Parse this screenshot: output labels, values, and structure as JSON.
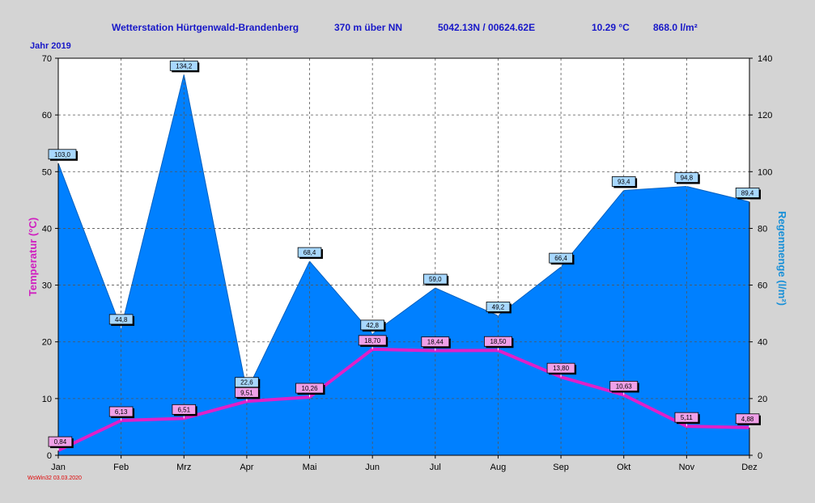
{
  "header": {
    "station": "Wetterstation Hürtgenwald-Brandenberg",
    "altitude": "370 m über NN",
    "coordinates": "5042.13N / 00624.62E",
    "avg_temp": "10.29 °C",
    "rain_total": "868.0 l/m²"
  },
  "year_label": "Jahr  2019",
  "footer": "WsWin32  03.03.2020",
  "colors": {
    "background": "#d4d4d4",
    "rain_fill": "#0080ff",
    "temperature_line": "#e020c8",
    "title_text": "#1818c8",
    "rain_axis_label": "#1890d8",
    "temp_axis_label": "#d020c0"
  },
  "chart_data": {
    "type": "area+line",
    "categories": [
      "Jan",
      "Feb",
      "Mrz",
      "Apr",
      "Mai",
      "Jun",
      "Jul",
      "Aug",
      "Sep",
      "Okt",
      "Nov",
      "Dez"
    ],
    "series": [
      {
        "name": "Regenmenge",
        "type": "area",
        "axis": "right",
        "values": [
          103.0,
          44.8,
          134.2,
          22.6,
          68.4,
          42.8,
          59.0,
          49.2,
          66.4,
          93.4,
          94.8,
          89.4
        ],
        "labels": [
          "103,0",
          "44,8",
          "134,2",
          "22,6",
          "68,4",
          "42,8",
          "59,0",
          "49,2",
          "66,4",
          "93,4",
          "94,8",
          "89,4"
        ]
      },
      {
        "name": "Temperatur",
        "type": "line",
        "axis": "left",
        "values": [
          0.84,
          6.13,
          6.51,
          9.51,
          10.26,
          18.7,
          18.44,
          18.5,
          13.8,
          10.63,
          5.11,
          4.88
        ],
        "labels": [
          "0,84",
          "6,13",
          "6,51",
          "9,51",
          "10,26",
          "18,70",
          "18,44",
          "18,50",
          "13,80",
          "10,63",
          "5,11",
          "4,88"
        ]
      }
    ],
    "y_left": {
      "label": "Temperatur  (°C)",
      "min": 0,
      "max": 70,
      "ticks": [
        0,
        10,
        20,
        30,
        40,
        50,
        60,
        70
      ]
    },
    "y_right": {
      "label": "Regenmenge  (l/m²)",
      "min": 0,
      "max": 140,
      "ticks": [
        0,
        20,
        40,
        60,
        80,
        100,
        120,
        140
      ]
    },
    "grid": true
  }
}
